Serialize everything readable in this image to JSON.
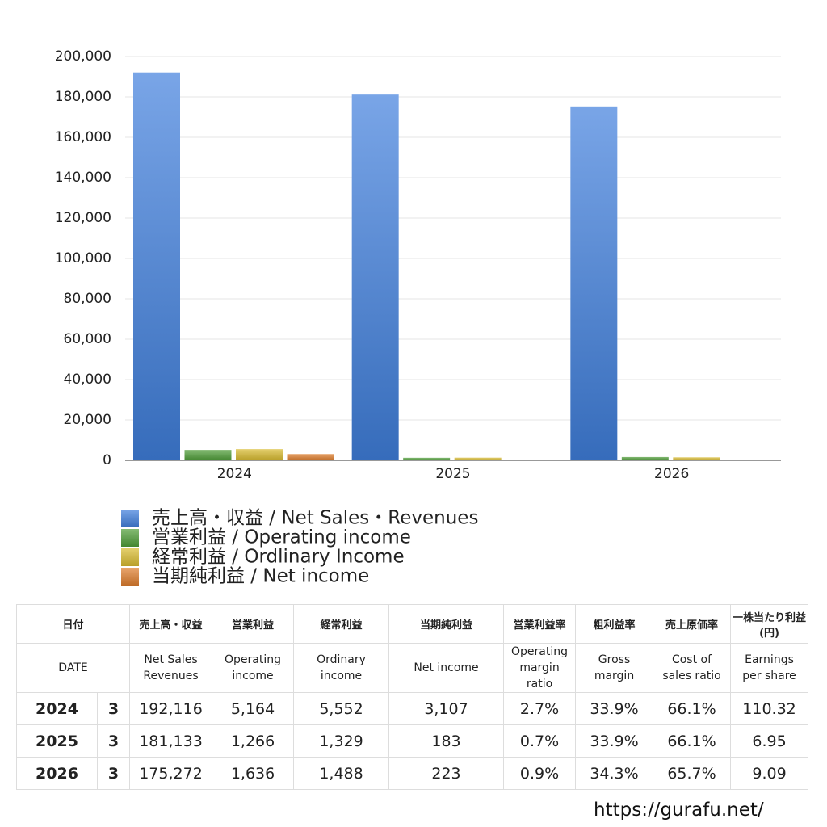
{
  "chart_data": {
    "type": "bar",
    "categories": [
      "2024",
      "2025",
      "2026"
    ],
    "series": [
      {
        "name": "売上高・収益 / Net Sales・Revenues",
        "color": "#3f7fdc",
        "values": [
          192116,
          181133,
          175272
        ]
      },
      {
        "name": "営業利益 / Operating income",
        "color": "#4f9e38",
        "values": [
          5164,
          1266,
          1636
        ]
      },
      {
        "name": "経常利益 / Ordlinary Income",
        "color": "#d9bb30",
        "values": [
          5552,
          1329,
          1488
        ]
      },
      {
        "name": "当期純利益 / Net income",
        "color": "#e07e2e",
        "values": [
          3107,
          183,
          223
        ]
      }
    ],
    "ylim": [
      0,
      200000
    ],
    "yticks": [
      0,
      {
        "value": 20000,
        "label": "20,000"
      },
      {
        "value": 40000,
        "label": "40,000"
      },
      {
        "value": 60000,
        "label": "60,000"
      },
      {
        "value": 80000,
        "label": "80,000"
      },
      {
        "value": 100000,
        "label": "100,000"
      },
      {
        "value": 120000,
        "label": "120,000"
      },
      {
        "value": 140000,
        "label": "140,000"
      },
      {
        "value": 160000,
        "label": "160,000"
      },
      {
        "value": 180000,
        "label": "180,000"
      },
      {
        "value": 200000,
        "label": "200,000"
      }
    ],
    "grid": true
  },
  "table": {
    "header": [
      [
        "日付",
        "売上高・収益",
        "営業利益",
        "経常利益",
        "当期純利益",
        "営業利益率",
        "粗利益率",
        "売上原価率",
        "一株当たり利益\n(円)"
      ],
      [
        "DATE",
        "Net Sales\nRevenues",
        "Operating\nincome",
        "Ordinary\nincome",
        "Net income",
        "Operating\nmargin\nratio",
        "Gross\nmargin",
        "Cost of\nsales ratio",
        "Earnings\nper share"
      ]
    ],
    "rows": [
      [
        "2024",
        "3",
        "192,116",
        "5,164",
        "5,552",
        "3,107",
        "2.7%",
        "33.9%",
        "66.1%",
        "110.32"
      ],
      [
        "2025",
        "3",
        "181,133",
        "1,266",
        "1,329",
        "183",
        "0.7%",
        "33.9%",
        "66.1%",
        "6.95"
      ],
      [
        "2026",
        "3",
        "175,272",
        "1,636",
        "1,488",
        "223",
        "0.9%",
        "34.3%",
        "65.7%",
        "9.09"
      ]
    ]
  },
  "footer": "https://gurafu.net/"
}
